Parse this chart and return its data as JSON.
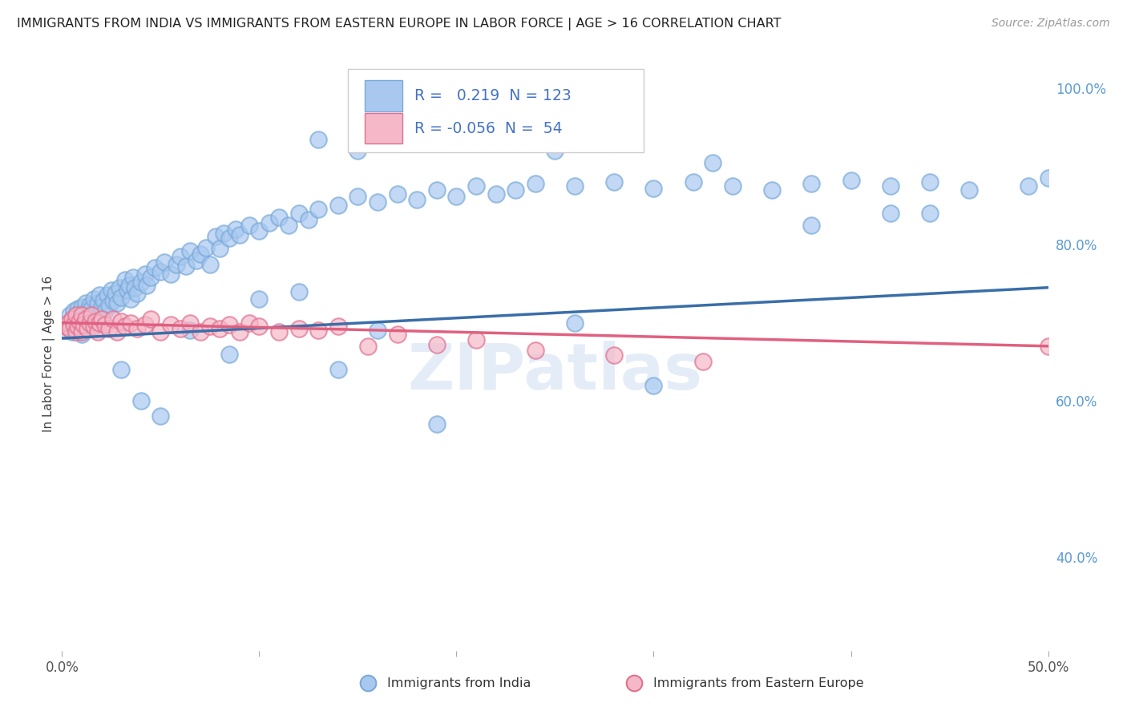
{
  "title": "IMMIGRANTS FROM INDIA VS IMMIGRANTS FROM EASTERN EUROPE IN LABOR FORCE | AGE > 16 CORRELATION CHART",
  "source": "Source: ZipAtlas.com",
  "ylabel": "In Labor Force | Age > 16",
  "xlim": [
    0.0,
    0.5
  ],
  "ylim": [
    0.28,
    1.04
  ],
  "xtick_positions": [
    0.0,
    0.1,
    0.2,
    0.3,
    0.4,
    0.5
  ],
  "xtick_labels": [
    "0.0%",
    "",
    "",
    "",
    "",
    "50.0%"
  ],
  "yticks_right": [
    0.4,
    0.6,
    0.8,
    1.0
  ],
  "ytick_right_labels": [
    "40.0%",
    "60.0%",
    "80.0%",
    "100.0%"
  ],
  "blue_color": "#A8C8F0",
  "blue_edge_color": "#7AAAD8",
  "pink_color": "#F5B8C8",
  "pink_edge_color": "#E07090",
  "blue_line_color": "#3A6EA8",
  "pink_line_color": "#E06080",
  "R_blue": "0.219",
  "N_blue": "123",
  "R_pink": "-0.056",
  "N_pink": "54",
  "legend_label_blue": "Immigrants from India",
  "legend_label_pink": "Immigrants from Eastern Europe",
  "watermark": "ZIPatlas",
  "background_color": "#FFFFFF",
  "grid_color": "#CCCCCC",
  "blue_trend_x": [
    0.0,
    0.5
  ],
  "blue_trend_y": [
    0.68,
    0.745
  ],
  "pink_trend_x": [
    0.0,
    0.5
  ],
  "pink_trend_y": [
    0.7,
    0.67
  ],
  "blue_x": [
    0.002,
    0.003,
    0.004,
    0.004,
    0.005,
    0.005,
    0.006,
    0.006,
    0.007,
    0.007,
    0.008,
    0.008,
    0.009,
    0.009,
    0.01,
    0.01,
    0.01,
    0.011,
    0.011,
    0.012,
    0.012,
    0.013,
    0.013,
    0.014,
    0.014,
    0.015,
    0.015,
    0.016,
    0.016,
    0.017,
    0.018,
    0.019,
    0.02,
    0.021,
    0.022,
    0.023,
    0.024,
    0.025,
    0.026,
    0.027,
    0.028,
    0.029,
    0.03,
    0.032,
    0.033,
    0.034,
    0.035,
    0.036,
    0.037,
    0.038,
    0.04,
    0.042,
    0.043,
    0.045,
    0.047,
    0.05,
    0.052,
    0.055,
    0.058,
    0.06,
    0.063,
    0.065,
    0.068,
    0.07,
    0.073,
    0.075,
    0.078,
    0.08,
    0.082,
    0.085,
    0.088,
    0.09,
    0.095,
    0.1,
    0.105,
    0.11,
    0.115,
    0.12,
    0.125,
    0.13,
    0.14,
    0.15,
    0.16,
    0.17,
    0.18,
    0.19,
    0.2,
    0.21,
    0.22,
    0.23,
    0.24,
    0.26,
    0.28,
    0.3,
    0.32,
    0.34,
    0.36,
    0.38,
    0.4,
    0.42,
    0.44,
    0.46,
    0.49,
    0.5,
    0.13,
    0.15,
    0.25,
    0.33,
    0.38,
    0.42,
    0.44,
    0.3,
    0.26,
    0.19,
    0.16,
    0.14,
    0.12,
    0.1,
    0.085,
    0.065,
    0.05,
    0.04,
    0.03
  ],
  "blue_y": [
    0.69,
    0.7,
    0.695,
    0.71,
    0.688,
    0.705,
    0.692,
    0.715,
    0.698,
    0.708,
    0.695,
    0.718,
    0.702,
    0.712,
    0.685,
    0.7,
    0.72,
    0.71,
    0.695,
    0.705,
    0.725,
    0.698,
    0.715,
    0.708,
    0.722,
    0.7,
    0.718,
    0.705,
    0.73,
    0.712,
    0.725,
    0.735,
    0.72,
    0.728,
    0.715,
    0.735,
    0.722,
    0.742,
    0.728,
    0.738,
    0.725,
    0.745,
    0.732,
    0.755,
    0.742,
    0.748,
    0.73,
    0.758,
    0.745,
    0.738,
    0.752,
    0.762,
    0.748,
    0.758,
    0.77,
    0.765,
    0.778,
    0.762,
    0.775,
    0.785,
    0.772,
    0.792,
    0.78,
    0.788,
    0.796,
    0.775,
    0.81,
    0.795,
    0.815,
    0.808,
    0.82,
    0.812,
    0.825,
    0.818,
    0.828,
    0.835,
    0.825,
    0.84,
    0.832,
    0.845,
    0.85,
    0.862,
    0.855,
    0.865,
    0.858,
    0.87,
    0.862,
    0.875,
    0.865,
    0.87,
    0.878,
    0.875,
    0.88,
    0.872,
    0.88,
    0.875,
    0.87,
    0.878,
    0.882,
    0.875,
    0.88,
    0.87,
    0.875,
    0.885,
    0.935,
    0.92,
    0.92,
    0.905,
    0.825,
    0.84,
    0.84,
    0.62,
    0.7,
    0.57,
    0.69,
    0.64,
    0.74,
    0.73,
    0.66,
    0.69,
    0.58,
    0.6,
    0.64
  ],
  "pink_x": [
    0.002,
    0.003,
    0.004,
    0.005,
    0.006,
    0.007,
    0.007,
    0.008,
    0.009,
    0.01,
    0.01,
    0.011,
    0.012,
    0.013,
    0.014,
    0.015,
    0.016,
    0.017,
    0.018,
    0.019,
    0.02,
    0.022,
    0.024,
    0.026,
    0.028,
    0.03,
    0.032,
    0.035,
    0.038,
    0.042,
    0.045,
    0.05,
    0.055,
    0.06,
    0.065,
    0.07,
    0.075,
    0.08,
    0.085,
    0.09,
    0.095,
    0.1,
    0.11,
    0.12,
    0.13,
    0.14,
    0.155,
    0.17,
    0.19,
    0.21,
    0.24,
    0.28,
    0.325,
    0.5
  ],
  "pink_y": [
    0.695,
    0.7,
    0.692,
    0.705,
    0.698,
    0.688,
    0.71,
    0.695,
    0.702,
    0.688,
    0.71,
    0.698,
    0.705,
    0.692,
    0.7,
    0.71,
    0.695,
    0.702,
    0.688,
    0.7,
    0.705,
    0.698,
    0.692,
    0.705,
    0.688,
    0.702,
    0.695,
    0.7,
    0.692,
    0.698,
    0.705,
    0.688,
    0.698,
    0.692,
    0.7,
    0.688,
    0.695,
    0.692,
    0.698,
    0.688,
    0.7,
    0.695,
    0.688,
    0.692,
    0.69,
    0.695,
    0.67,
    0.685,
    0.672,
    0.678,
    0.665,
    0.658,
    0.65,
    0.67
  ]
}
